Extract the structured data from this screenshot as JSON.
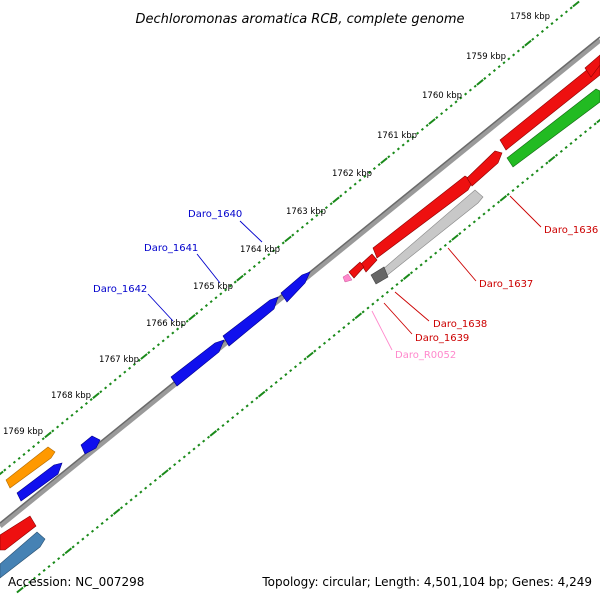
{
  "title": "Dechloromonas aromatica RCB, complete genome",
  "footer": {
    "accession": "Accession: NC_007298",
    "summary": "Topology: circular; Length: 4,501,104 bp; Genes: 4,249"
  },
  "colors": {
    "backbone": "#888888",
    "tick_dots": "#1a8a1a",
    "forward_gene": "#0000ee",
    "reverse_gene": "#ee0000",
    "rna_gene": "#ff88cc",
    "pseudo_gene": "#999999",
    "green_feature": "#22bb22",
    "orange_feature": "#ff9900",
    "steelblue_feature": "#4682b4"
  },
  "scale": {
    "unit": "kbp",
    "ticks": [
      "1758 kbp",
      "1759 kbp",
      "1760 kbp",
      "1761 kbp",
      "1762 kbp",
      "1763 kbp",
      "1764 kbp",
      "1765 kbp",
      "1766 kbp",
      "1767 kbp",
      "1768 kbp",
      "1769 kbp"
    ]
  },
  "labels": {
    "forward": [
      "Daro_1640",
      "Daro_1641",
      "Daro_1642"
    ],
    "reverse": [
      "Daro_1636",
      "Daro_1637",
      "Daro_1638",
      "Daro_1639"
    ],
    "rna": "Daro_R0052"
  }
}
